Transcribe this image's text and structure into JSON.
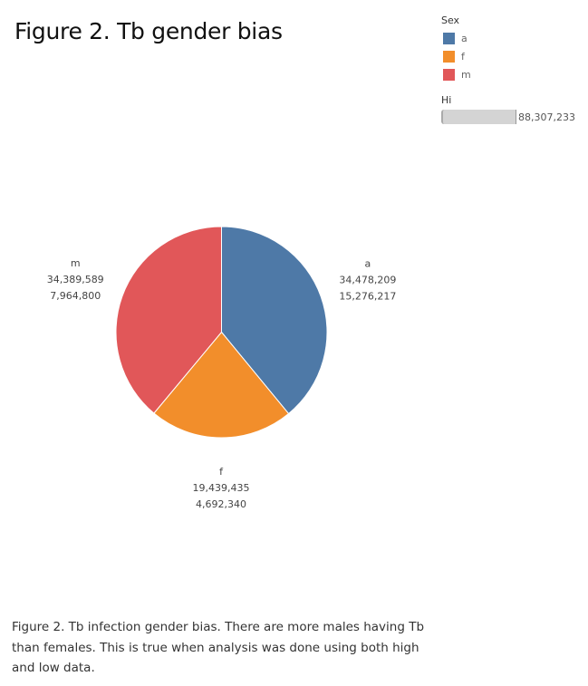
{
  "title": "Figure 2. Tb gender bias",
  "legend": {
    "title": "Sex",
    "items": [
      {
        "label": "a",
        "color": "#4e79a7"
      },
      {
        "label": "f",
        "color": "#f28e2b"
      },
      {
        "label": "m",
        "color": "#e15759"
      }
    ]
  },
  "size_legend": {
    "title": "Hi",
    "max_value": "88,307,233"
  },
  "chart_data": {
    "type": "pie",
    "title": "Figure 2. Tb gender bias",
    "slices": [
      {
        "label": "a",
        "value": 34478209,
        "value_text": "34,478,209",
        "secondary_text": "15,276,217",
        "color": "#4e79a7"
      },
      {
        "label": "f",
        "value": 19439435,
        "value_text": "19,439,435",
        "secondary_text": "4,692,340",
        "color": "#f28e2b"
      },
      {
        "label": "m",
        "value": 34389589,
        "value_text": "34,389,589",
        "secondary_text": "7,964,800",
        "color": "#e15759"
      }
    ]
  },
  "caption": "Figure 2. Tb infection gender bias. There are more males having Tb than females. This is true when analysis was done using both high and low data."
}
